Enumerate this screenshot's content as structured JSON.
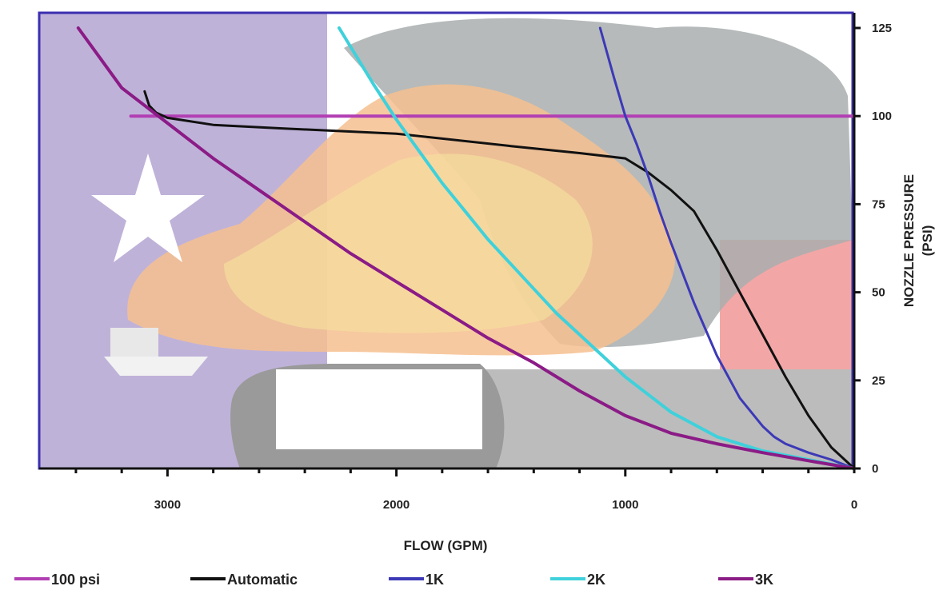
{
  "chart_data": {
    "type": "line",
    "xlabel": "FLOW (GPM)",
    "ylabel_line1": "NOZZLE PRESSURE",
    "ylabel_line2": "(PSI)",
    "x_direction": "reversed",
    "xlim": [
      3500,
      0
    ],
    "ylim": [
      0,
      125
    ],
    "x_ticks": [
      "3000",
      "2000",
      "1000",
      "0"
    ],
    "x_tick_values": [
      3000,
      2000,
      1000,
      0
    ],
    "x_minor_step": 200,
    "y_ticks": [
      "0",
      "25",
      "50",
      "75",
      "100",
      "125"
    ],
    "y_tick_values": [
      0,
      25,
      50,
      75,
      100,
      125
    ],
    "y_axis_side": "right",
    "legend_position": "bottom",
    "background": "photo of a tank fire behind a Texas flag, washed out",
    "series": [
      {
        "name": "100 psi",
        "color": "#b23fb3",
        "stroke_width": 4,
        "x": [
          3160,
          0
        ],
        "y": [
          100,
          100
        ]
      },
      {
        "name": "Automatic",
        "color": "#111111",
        "stroke_width": 3,
        "x": [
          3100,
          3080,
          3050,
          3000,
          2800,
          2500,
          2000,
          1500,
          1200,
          1000,
          900,
          800,
          700,
          600,
          500,
          400,
          300,
          200,
          100,
          0
        ],
        "y": [
          107,
          103,
          101,
          99.5,
          97.5,
          96.5,
          95,
          91.5,
          89.5,
          88,
          84,
          79,
          73,
          62,
          50,
          38,
          26,
          15,
          6,
          0
        ]
      },
      {
        "name": "1K",
        "color": "#3c39b7",
        "stroke_width": 3,
        "x": [
          1110,
          1050,
          1000,
          950,
          900,
          850,
          800,
          700,
          600,
          500,
          400,
          350,
          300,
          200,
          100,
          0
        ],
        "y": [
          125,
          111,
          100,
          92,
          83,
          73,
          64,
          47,
          32,
          20,
          12,
          9,
          7,
          4.5,
          2.5,
          0
        ]
      },
      {
        "name": "2K",
        "color": "#3fd1db",
        "stroke_width": 4,
        "x": [
          2250,
          2100,
          2000,
          1900,
          1800,
          1700,
          1600,
          1500,
          1400,
          1300,
          1200,
          1000,
          800,
          600,
          400,
          200,
          0
        ],
        "y": [
          125,
          109,
          99,
          90,
          81,
          73,
          65,
          58,
          51,
          44,
          38,
          26,
          16,
          9,
          5,
          2.5,
          0
        ]
      },
      {
        "name": "3K",
        "color": "#8b1b86",
        "stroke_width": 4,
        "x": [
          3390,
          3200,
          3000,
          2800,
          2600,
          2400,
          2200,
          2000,
          1800,
          1600,
          1400,
          1200,
          1000,
          800,
          600,
          400,
          200,
          0
        ],
        "y": [
          125,
          108,
          98,
          88,
          79,
          70,
          61,
          53,
          45,
          37,
          30,
          22,
          15,
          10,
          7,
          4.5,
          2.2,
          0
        ]
      }
    ]
  }
}
